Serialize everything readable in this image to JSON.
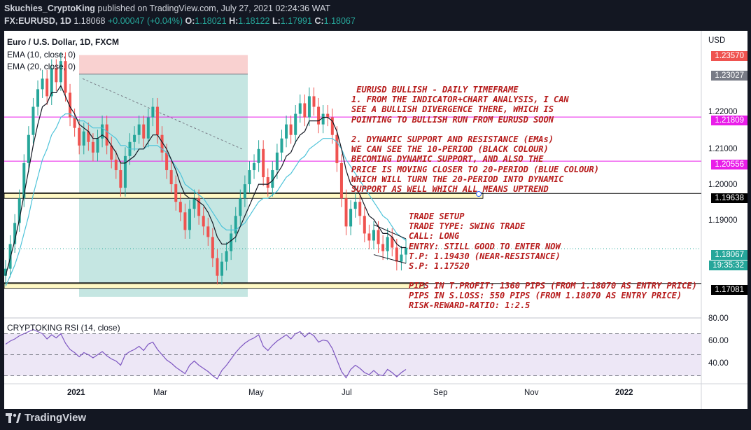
{
  "header": {
    "publisher": "Skuchies_CryptoKing",
    "published_text": "published on TradingView.com, July 27, 2021 02:24:36 WAT",
    "symbol": "FX:EURUSD, 1D",
    "price": "1.18068",
    "change": "+0.00047 (+0.04%)",
    "o_label": "O:",
    "o": "1.18021",
    "h_label": "H:",
    "h": "1.18122",
    "l_label": "L:",
    "l": "1.17991",
    "c_label": "C:",
    "c": "1.18067"
  },
  "legend": {
    "title": "Euro / U.S. Dollar, 1D, FXCM",
    "ema10": "EMA (10, close, 0)",
    "ema20": "EMA (20, close, 0)",
    "rsi": "CRYPTOKING RSI (14, close)"
  },
  "price_axis": {
    "currency": "USD",
    "ticks": [
      "1.22000",
      "1.21000",
      "1.20000",
      "1.19000"
    ],
    "rsi_ticks": [
      "80.00",
      "60.00",
      "40.00"
    ]
  },
  "price_tags": [
    {
      "value": "1.23570",
      "color": "#ef5350"
    },
    {
      "value": "1.23027",
      "color": "#787b86"
    },
    {
      "value": "1.21809",
      "color": "#e91ee9"
    },
    {
      "value": "1.20556",
      "color": "#e91ee9"
    },
    {
      "value": "1.19638",
      "color": "#000000"
    },
    {
      "value": "1.18067",
      "color": "#26a69a"
    },
    {
      "value": "19:35:32",
      "color": "#26a69a"
    },
    {
      "value": "1.17081",
      "color": "#000000"
    }
  ],
  "time_axis": [
    "2021",
    "Mar",
    "May",
    "Jul",
    "Sep",
    "Nov",
    "2022"
  ],
  "notes": {
    "bullish": " EURUSD BULLISH - DAILY TIMEFRAME\n1. FROM THE INDICATOR+CHART ANALYSIS, I CAN\nSEE A BULLISH DIVERGENCE THERE, WHICH IS\nPOINTING TO BULLISH RUN FROM EURUSD SOON\n\n2. DYNAMIC SUPPORT AND RESISTANCE (EMAs)\nWE CAN SEE THE 10-PERIOD (BLACK COLOUR)\nBECOMING DYNAMIC SUPPORT, AND ALSO THE\nPRICE IS MOVING CLOSER TO 20-PERIOD (BLUE COLOUR)\nWHICH WILL TURN THE 20-PERIOD INTO DYNAMIC\nSUPPORT AS WELL WHICH ALL MEANS UPTREND",
    "setup": "TRADE SETUP\nTRADE TYPE: SWING TRADE\nCALL: LONG\nENTRY: STILL GOOD TO ENTER NOW\nT.P: 1.19430 (NEAR-RESISTANCE)\nS.P: 1.17520",
    "pips": "PIPS IN T.PROFIT: 1360 PIPS (FROM 1.18070 AS ENTRY PRICE)\nPIPS IN S.LOSS: 550 PIPS (FROM 1.18070 AS ENTRY PRICE)\nRISK-REWARD-RATIO: 1:2.5"
  },
  "footer": {
    "brand": "TradingView"
  },
  "chart_data": {
    "type": "line",
    "title": "Euro / U.S. Dollar, 1D, FXCM",
    "ylim": [
      1.162,
      1.241
    ],
    "rsi_ylim": [
      25,
      85
    ],
    "x_labels": [
      "2021",
      "Mar",
      "May",
      "Jul",
      "Sep",
      "Nov",
      "2022"
    ],
    "close": [
      1.175,
      1.182,
      1.188,
      1.195,
      1.205,
      1.213,
      1.221,
      1.226,
      1.229,
      1.224,
      1.232,
      1.228,
      1.234,
      1.225,
      1.218,
      1.215,
      1.21,
      1.214,
      1.211,
      1.208,
      1.212,
      1.216,
      1.21,
      1.206,
      1.203,
      1.198,
      1.207,
      1.211,
      1.213,
      1.216,
      1.212,
      1.218,
      1.221,
      1.213,
      1.208,
      1.203,
      1.199,
      1.194,
      1.191,
      1.186,
      1.192,
      1.195,
      1.19,
      1.187,
      1.184,
      1.178,
      1.173,
      1.177,
      1.18,
      1.185,
      1.19,
      1.195,
      1.199,
      1.203,
      1.205,
      1.209,
      1.201,
      1.198,
      1.203,
      1.208,
      1.212,
      1.216,
      1.213,
      1.219,
      1.222,
      1.218,
      1.224,
      1.221,
      1.216,
      1.219,
      1.218,
      1.213,
      1.205,
      1.195,
      1.187,
      1.192,
      1.194,
      1.19,
      1.185,
      1.183,
      1.186,
      1.182,
      1.18,
      1.184,
      1.181,
      1.177,
      1.179,
      1.181
    ],
    "ema10": [
      1.173,
      1.178,
      1.183,
      1.189,
      1.196,
      1.203,
      1.21,
      1.216,
      1.221,
      1.222,
      1.225,
      1.225,
      1.227,
      1.224,
      1.221,
      1.219,
      1.216,
      1.215,
      1.214,
      1.212,
      1.212,
      1.213,
      1.212,
      1.21,
      1.208,
      1.205,
      1.205,
      1.206,
      1.207,
      1.209,
      1.209,
      1.211,
      1.213,
      1.213,
      1.211,
      1.209,
      1.206,
      1.203,
      1.199,
      1.196,
      1.195,
      1.195,
      1.194,
      1.193,
      1.191,
      1.188,
      1.184,
      1.182,
      1.182,
      1.183,
      1.184,
      1.187,
      1.19,
      1.193,
      1.196,
      1.199,
      1.199,
      1.199,
      1.2,
      1.202,
      1.204,
      1.207,
      1.208,
      1.211,
      1.213,
      1.214,
      1.217,
      1.217,
      1.217,
      1.218,
      1.218,
      1.217,
      1.214,
      1.209,
      1.203,
      1.199,
      1.198,
      1.196,
      1.193,
      1.19,
      1.189,
      1.187,
      1.185,
      1.185,
      1.184,
      1.182,
      1.181,
      1.181
    ],
    "ema20": [
      1.17,
      1.173,
      1.176,
      1.18,
      1.185,
      1.19,
      1.196,
      1.201,
      1.206,
      1.209,
      1.213,
      1.215,
      1.218,
      1.219,
      1.219,
      1.218,
      1.217,
      1.217,
      1.216,
      1.215,
      1.215,
      1.215,
      1.214,
      1.213,
      1.212,
      1.21,
      1.21,
      1.209,
      1.209,
      1.209,
      1.209,
      1.21,
      1.21,
      1.21,
      1.209,
      1.208,
      1.206,
      1.204,
      1.202,
      1.199,
      1.198,
      1.197,
      1.196,
      1.195,
      1.193,
      1.191,
      1.189,
      1.187,
      1.186,
      1.186,
      1.186,
      1.187,
      1.188,
      1.19,
      1.192,
      1.194,
      1.195,
      1.195,
      1.196,
      1.197,
      1.199,
      1.201,
      1.202,
      1.204,
      1.206,
      1.207,
      1.209,
      1.21,
      1.211,
      1.212,
      1.212,
      1.212,
      1.211,
      1.209,
      1.206,
      1.204,
      1.202,
      1.2,
      1.198,
      1.196,
      1.194,
      1.192,
      1.19,
      1.189,
      1.187,
      1.185,
      1.184,
      1.183
    ],
    "rsi": [
      60,
      63,
      65,
      68,
      70,
      72,
      74,
      72,
      70,
      65,
      69,
      66,
      70,
      61,
      55,
      52,
      48,
      52,
      50,
      47,
      50,
      53,
      49,
      46,
      44,
      40,
      50,
      53,
      55,
      58,
      54,
      60,
      62,
      55,
      50,
      45,
      42,
      38,
      35,
      32,
      40,
      44,
      40,
      37,
      34,
      30,
      27,
      35,
      40,
      46,
      52,
      57,
      61,
      64,
      66,
      69,
      58,
      54,
      59,
      63,
      66,
      69,
      65,
      70,
      72,
      67,
      71,
      68,
      62,
      64,
      63,
      56,
      45,
      34,
      28,
      36,
      40,
      37,
      33,
      31,
      35,
      31,
      30,
      36,
      33,
      29,
      33,
      36
    ],
    "levels": [
      {
        "name": "1.21809",
        "value": 1.21809,
        "color": "#e91ee9"
      },
      {
        "name": "1.20556",
        "value": 1.20556,
        "color": "#e91ee9"
      },
      {
        "name": "1.19638",
        "value": 1.19638,
        "color": "#000000"
      },
      {
        "name": "1.17081",
        "value": 1.17081,
        "color": "#000000"
      }
    ],
    "position": {
      "entry": 1.23027,
      "stop": 1.2357,
      "target": 1.167
    },
    "last_price": 1.18067,
    "rsi_levels": [
      70,
      50,
      30
    ]
  }
}
